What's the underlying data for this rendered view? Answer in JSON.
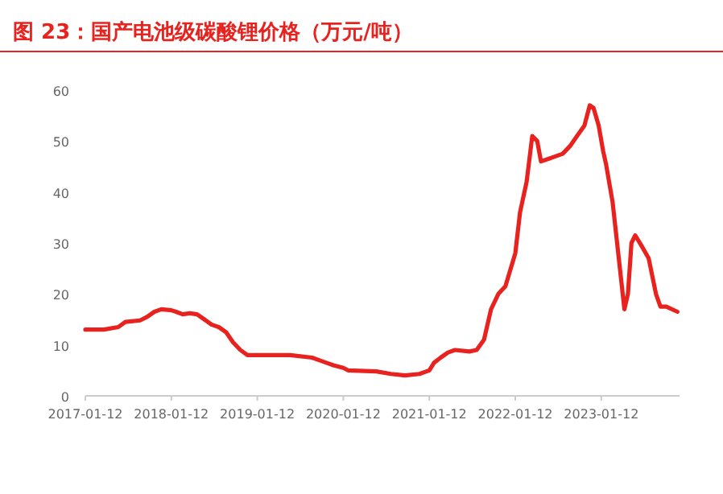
{
  "chart_data": {
    "type": "line",
    "title": "图 23：国产电池级碳酸锂价格（万元/吨）",
    "x": [
      "2017-01-12",
      "2017-04-01",
      "2017-06-01",
      "2017-07-01",
      "2017-09-01",
      "2017-10-01",
      "2017-11-01",
      "2017-12-01",
      "2018-01-12",
      "2018-02-01",
      "2018-03-01",
      "2018-04-01",
      "2018-05-01",
      "2018-06-01",
      "2018-07-01",
      "2018-08-01",
      "2018-09-01",
      "2018-10-01",
      "2018-11-01",
      "2018-12-01",
      "2019-03-01",
      "2019-06-01",
      "2019-09-01",
      "2019-10-01",
      "2019-11-01",
      "2019-12-01",
      "2020-01-12",
      "2020-02-01",
      "2020-06-01",
      "2020-08-01",
      "2020-10-01",
      "2020-12-01",
      "2021-01-12",
      "2021-02-01",
      "2021-03-01",
      "2021-04-01",
      "2021-05-01",
      "2021-07-01",
      "2021-08-01",
      "2021-09-01",
      "2021-10-01",
      "2021-11-01",
      "2021-12-01",
      "2022-01-12",
      "2022-02-01",
      "2022-03-01",
      "2022-03-25",
      "2022-04-15",
      "2022-05-01",
      "2022-06-01",
      "2022-07-01",
      "2022-08-01",
      "2022-09-01",
      "2022-10-01",
      "2022-11-01",
      "2022-11-24",
      "2022-12-10",
      "2023-01-01",
      "2023-01-20",
      "2023-02-01",
      "2023-03-01",
      "2023-04-01",
      "2023-04-20",
      "2023-05-05",
      "2023-05-20",
      "2023-06-05",
      "2023-07-01",
      "2023-08-01",
      "2023-09-01",
      "2023-09-20",
      "2023-10-15",
      "2023-12-01"
    ],
    "series": [
      {
        "color": "#e8231f",
        "values": [
          13,
          13,
          13.5,
          14.5,
          14.8,
          15.5,
          16.5,
          17,
          16.8,
          16.5,
          16,
          16.2,
          16,
          15,
          14,
          13.5,
          12.5,
          10.5,
          9,
          8,
          8,
          8,
          7.5,
          7,
          6.5,
          6,
          5.5,
          5,
          4.8,
          4.3,
          4,
          4.3,
          5,
          6.5,
          7.5,
          8.5,
          9,
          8.7,
          9,
          11,
          17,
          20,
          21.5,
          28,
          36,
          42,
          51,
          50,
          46,
          46.5,
          47,
          47.5,
          49,
          51,
          53,
          57,
          56.5,
          53,
          48,
          45.5,
          38,
          25,
          17,
          20,
          30,
          31.5,
          29.5,
          27,
          20,
          17.5,
          17.5,
          16.5
        ]
      }
    ],
    "xlim": [
      "2017-01-12",
      "2023-12-10"
    ],
    "ylim": [
      0,
      60
    ],
    "xticks": [
      "2017-01-12",
      "2018-01-12",
      "2019-01-12",
      "2020-01-12",
      "2021-01-12",
      "2022-01-12",
      "2023-01-12"
    ],
    "yticks": [
      0,
      10,
      20,
      30,
      40,
      50,
      60
    ],
    "grid": false,
    "marker": "none",
    "line_style": "solid"
  }
}
